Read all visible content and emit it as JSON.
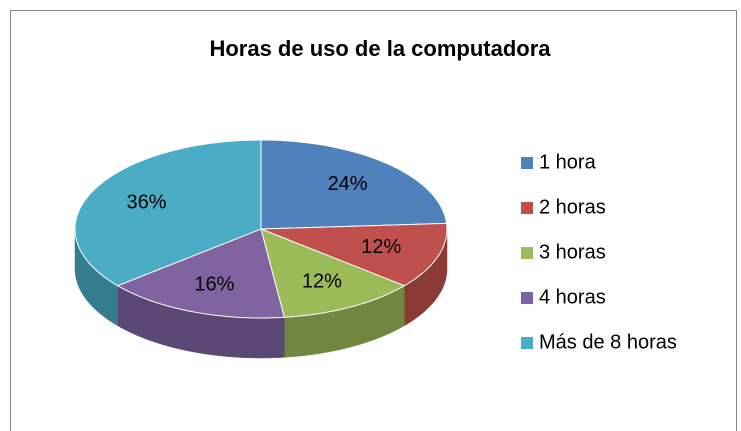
{
  "chart_data": {
    "type": "pie",
    "title": "Horas de uso de la computadora",
    "categories": [
      "1 hora",
      "2 horas",
      "3 horas",
      "4 horas",
      "Más de 8 horas"
    ],
    "values": [
      24,
      12,
      12,
      16,
      36
    ],
    "value_labels": [
      "24%",
      "12%",
      "12%",
      "16%",
      "36%"
    ],
    "colors": [
      "#4f81bd",
      "#c0504d",
      "#9bbb59",
      "#8064a2",
      "#4bacc6"
    ],
    "legend": "right"
  }
}
